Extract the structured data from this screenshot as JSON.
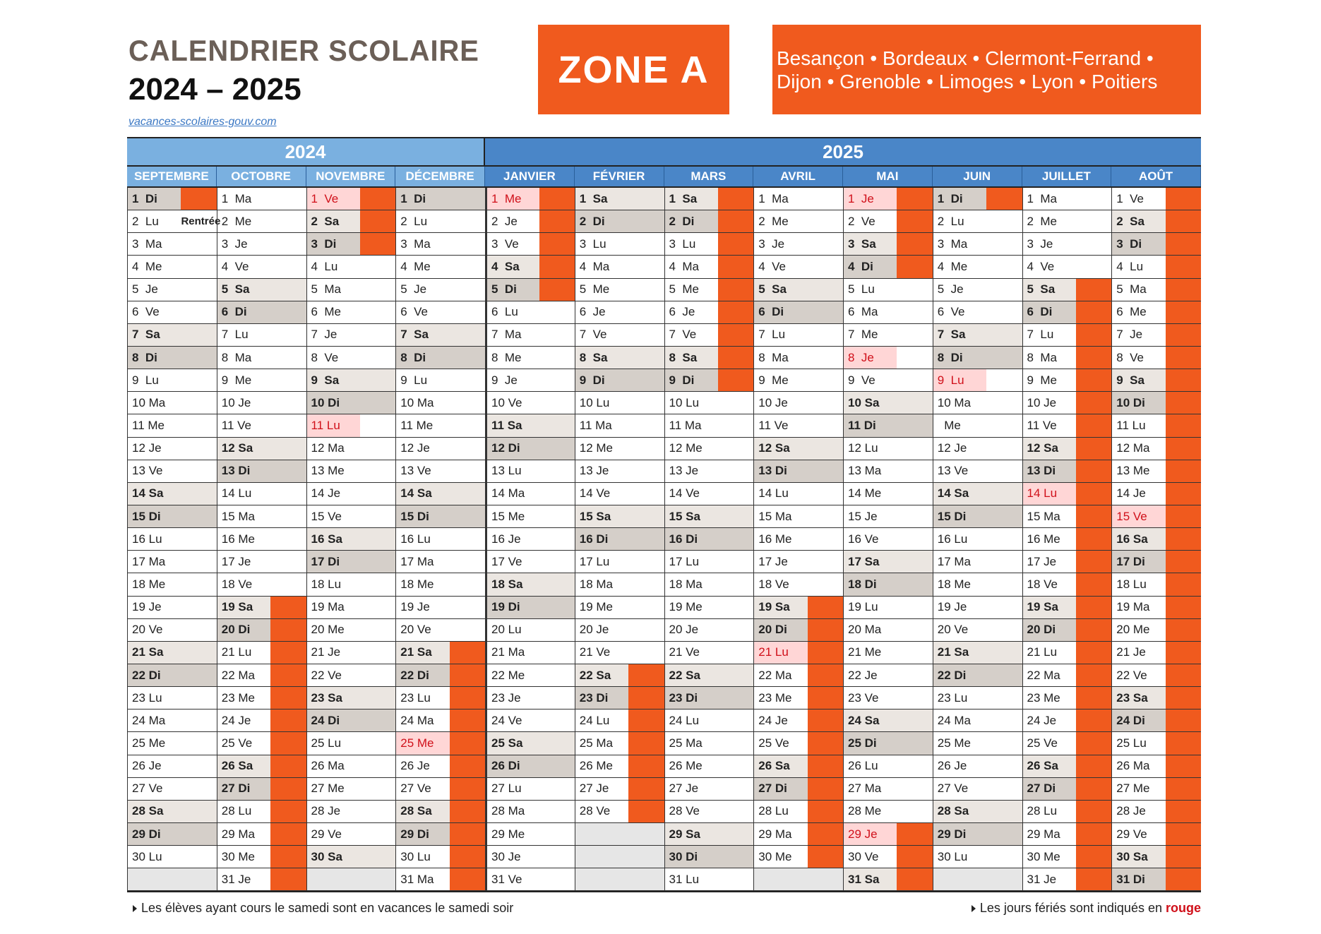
{
  "header": {
    "title": "CALENDRIER SCOLAIRE",
    "years": "2024 – 2025",
    "link": "vacances-scolaires-gouv.com",
    "zone": "ZONE A",
    "cities": "Besançon • Bordeaux • Clermont-Ferrand • Dijon • Grenoble • Limoges • Lyon • Poitiers"
  },
  "colors": {
    "vacation": "#f05a1e",
    "year_2024": "#7ab0e0",
    "year_2025": "#4a86c8",
    "saturday": "#ebe6e1",
    "sunday": "#d5cfc9",
    "holiday_bg": "#ffd6d6",
    "holiday_text": "#d0101a"
  },
  "year_headers": [
    "2024",
    "2025"
  ],
  "months": [
    {
      "name": "SEPTEMBRE",
      "year": "2024",
      "days": [
        "1 Di",
        "2 Lu",
        "3 Ma",
        "4 Me",
        "5 Je",
        "6 Ve",
        "7 Sa",
        "8 Di",
        "9 Lu",
        "10 Ma",
        "11 Me",
        "12 Je",
        "13 Ve",
        "14 Sa",
        "15 Di",
        "16 Lu",
        "17 Ma",
        "18 Me",
        "19 Je",
        "20 Ve",
        "21 Sa",
        "22 Di",
        "23 Lu",
        "24 Ma",
        "25 Me",
        "26 Je",
        "27 Ve",
        "28 Sa",
        "29 Di",
        "30 Lu"
      ],
      "vacation": [
        [
          1,
          1
        ]
      ],
      "holidays": [],
      "notes": {
        "2": "Rentrée"
      }
    },
    {
      "name": "OCTOBRE",
      "year": "2024",
      "days": [
        "1 Ma",
        "2 Me",
        "3 Je",
        "4 Ve",
        "5 Sa",
        "6 Di",
        "7 Lu",
        "8 Ma",
        "9 Me",
        "10 Je",
        "11 Ve",
        "12 Sa",
        "13 Di",
        "14 Lu",
        "15 Ma",
        "16 Me",
        "17 Je",
        "18 Ve",
        "19 Sa",
        "20 Di",
        "21 Lu",
        "22 Ma",
        "23 Me",
        "24 Je",
        "25 Ve",
        "26 Sa",
        "27 Di",
        "28 Lu",
        "29 Ma",
        "30 Me",
        "31 Je"
      ],
      "vacation": [
        [
          19,
          31
        ]
      ],
      "holidays": []
    },
    {
      "name": "NOVEMBRE",
      "year": "2024",
      "days": [
        "1 Ve",
        "2 Sa",
        "3 Di",
        "4 Lu",
        "5 Ma",
        "6 Me",
        "7 Je",
        "8 Ve",
        "9 Sa",
        "10 Di",
        "11 Lu",
        "12 Ma",
        "13 Me",
        "14 Je",
        "15 Ve",
        "16 Sa",
        "17 Di",
        "18 Lu",
        "19 Ma",
        "20 Me",
        "21 Je",
        "22 Ve",
        "23 Sa",
        "24 Di",
        "25 Lu",
        "26 Ma",
        "27 Me",
        "28 Je",
        "29 Ve",
        "30 Sa"
      ],
      "vacation": [
        [
          1,
          3
        ]
      ],
      "holidays": [
        1,
        11
      ]
    },
    {
      "name": "DÉCEMBRE",
      "year": "2024",
      "days": [
        "1 Di",
        "2 Lu",
        "3 Ma",
        "4 Me",
        "5 Je",
        "6 Ve",
        "7 Sa",
        "8 Di",
        "9 Lu",
        "10 Ma",
        "11 Me",
        "12 Je",
        "13 Ve",
        "14 Sa",
        "15 Di",
        "16 Lu",
        "17 Ma",
        "18 Me",
        "19 Je",
        "20 Ve",
        "21 Sa",
        "22 Di",
        "23 Lu",
        "24 Ma",
        "25 Me",
        "26 Je",
        "27 Ve",
        "28 Sa",
        "29 Di",
        "30 Lu",
        "31 Ma"
      ],
      "vacation": [
        [
          21,
          31
        ]
      ],
      "holidays": [
        25
      ]
    },
    {
      "name": "JANVIER",
      "year": "2025",
      "days": [
        "1 Me",
        "2 Je",
        "3 Ve",
        "4 Sa",
        "5 Di",
        "6 Lu",
        "7 Ma",
        "8 Me",
        "9 Je",
        "10 Ve",
        "11 Sa",
        "12 Di",
        "13 Lu",
        "14 Ma",
        "15 Me",
        "16 Je",
        "17 Ve",
        "18 Sa",
        "19 Di",
        "20 Lu",
        "21 Ma",
        "22 Me",
        "23 Je",
        "24 Ve",
        "25 Sa",
        "26 Di",
        "27 Lu",
        "28 Ma",
        "29 Me",
        "30 Je",
        "31 Ve"
      ],
      "vacation": [
        [
          1,
          5
        ]
      ],
      "holidays": [
        1
      ]
    },
    {
      "name": "FÉVRIER",
      "year": "2025",
      "days": [
        "1 Sa",
        "2 Di",
        "3 Lu",
        "4 Ma",
        "5 Me",
        "6 Je",
        "7 Ve",
        "8 Sa",
        "9 Di",
        "10 Lu",
        "11 Ma",
        "12 Me",
        "13 Je",
        "14 Ve",
        "15 Sa",
        "16 Di",
        "17 Lu",
        "18 Ma",
        "19 Me",
        "20 Je",
        "21 Ve",
        "22 Sa",
        "23 Di",
        "24 Lu",
        "25 Ma",
        "26 Me",
        "27 Je",
        "28 Ve"
      ],
      "vacation": [
        [
          22,
          28
        ]
      ],
      "holidays": []
    },
    {
      "name": "MARS",
      "year": "2025",
      "days": [
        "1 Sa",
        "2 Di",
        "3 Lu",
        "4 Ma",
        "5 Me",
        "6 Je",
        "7 Ve",
        "8 Sa",
        "9 Di",
        "10 Lu",
        "11 Ma",
        "12 Me",
        "13 Je",
        "14 Ve",
        "15 Sa",
        "16 Di",
        "17 Lu",
        "18 Ma",
        "19 Me",
        "20 Je",
        "21 Ve",
        "22 Sa",
        "23 Di",
        "24 Lu",
        "25 Ma",
        "26 Me",
        "27 Je",
        "28 Ve",
        "29 Sa",
        "30 Di",
        "31 Lu"
      ],
      "vacation": [
        [
          1,
          9
        ]
      ],
      "holidays": []
    },
    {
      "name": "AVRIL",
      "year": "2025",
      "days": [
        "1 Ma",
        "2 Me",
        "3 Je",
        "4 Ve",
        "5 Sa",
        "6 Di",
        "7 Lu",
        "8 Ma",
        "9 Me",
        "10 Je",
        "11 Ve",
        "12 Sa",
        "13 Di",
        "14 Lu",
        "15 Ma",
        "16 Me",
        "17 Je",
        "18 Ve",
        "19 Sa",
        "20 Di",
        "21 Lu",
        "22 Ma",
        "23 Me",
        "24 Je",
        "25 Ve",
        "26 Sa",
        "27 Di",
        "28 Lu",
        "29 Ma",
        "30 Me"
      ],
      "vacation": [
        [
          19,
          30
        ]
      ],
      "holidays": [
        21
      ]
    },
    {
      "name": "MAI",
      "year": "2025",
      "days": [
        "1 Je",
        "2 Ve",
        "3 Sa",
        "4 Di",
        "5 Lu",
        "6 Ma",
        "7 Me",
        "8 Je",
        "9 Ve",
        "10 Sa",
        "11 Di",
        "12 Lu",
        "13 Ma",
        "14 Me",
        "15 Je",
        "16 Ve",
        "17 Sa",
        "18 Di",
        "19 Lu",
        "20 Ma",
        "21 Me",
        "22 Je",
        "23 Ve",
        "24 Sa",
        "25 Di",
        "26 Lu",
        "27 Ma",
        "28 Me",
        "29 Je",
        "30 Ve",
        "31 Sa"
      ],
      "vacation": [
        [
          1,
          4
        ],
        [
          29,
          31
        ]
      ],
      "holidays": [
        1,
        8,
        29
      ]
    },
    {
      "name": "JUIN",
      "year": "2025",
      "days": [
        "1 Di",
        "2 Lu",
        "3 Ma",
        "4 Me",
        "5 Je",
        "6 Ve",
        "7 Sa",
        "8 Di",
        "9 Lu",
        "10 Ma",
        "  Me",
        "12 Je",
        "13 Ve",
        "14 Sa",
        "15 Di",
        "16 Lu",
        "17 Ma",
        "18 Me",
        "19 Je",
        "20 Ve",
        "21 Sa",
        "22 Di",
        "23 Lu",
        "24 Ma",
        "25 Me",
        "26 Je",
        "27 Ve",
        "28 Sa",
        "29 Di",
        "30 Lu"
      ],
      "vacation": [
        [
          1,
          1
        ]
      ],
      "holidays": [
        9
      ]
    },
    {
      "name": "JUILLET",
      "year": "2025",
      "days": [
        "1 Ma",
        "2 Me",
        "3 Je",
        "4 Ve",
        "5 Sa",
        "6 Di",
        "7 Lu",
        "8 Ma",
        "9 Me",
        "10 Je",
        "11 Ve",
        "12 Sa",
        "13 Di",
        "14 Lu",
        "15 Ma",
        "16 Me",
        "17 Je",
        "18 Ve",
        "19 Sa",
        "20 Di",
        "21 Lu",
        "22 Ma",
        "23 Me",
        "24 Je",
        "25 Ve",
        "26 Sa",
        "27 Di",
        "28 Lu",
        "29 Ma",
        "30 Me",
        "31 Je"
      ],
      "vacation": [
        [
          5,
          31
        ]
      ],
      "holidays": [
        14
      ]
    },
    {
      "name": "AOÛT",
      "year": "2025",
      "days": [
        "1 Ve",
        "2 Sa",
        "3 Di",
        "4 Lu",
        "5 Ma",
        "6 Me",
        "7 Je",
        "8 Ve",
        "9 Sa",
        "10 Di",
        "11 Lu",
        "12 Ma",
        "13 Me",
        "14 Je",
        "15 Ve",
        "16 Sa",
        "17 Di",
        "18 Lu",
        "19 Ma",
        "20 Me",
        "21 Je",
        "22 Ve",
        "23 Sa",
        "24 Di",
        "25 Lu",
        "26 Ma",
        "27 Me",
        "28 Je",
        "29 Ve",
        "30 Sa",
        "31 Di"
      ],
      "vacation": [
        [
          1,
          31
        ]
      ],
      "holidays": [
        15
      ]
    }
  ],
  "footer": {
    "left": "Les élèves ayant cours le samedi sont en vacances le samedi soir",
    "right_prefix": "Les jours fériés sont indiqués en ",
    "right_highlight": "rouge"
  }
}
